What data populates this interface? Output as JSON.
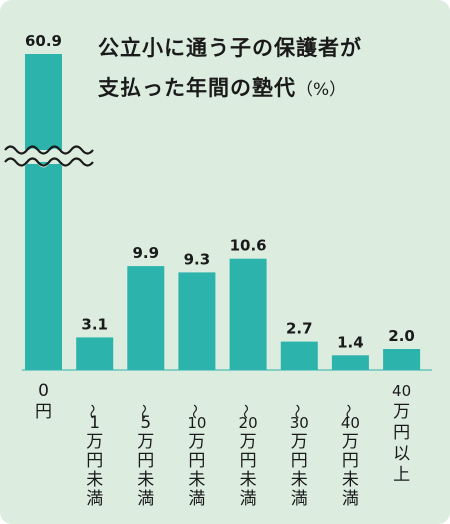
{
  "chart_data": {
    "type": "bar",
    "title_lines": [
      "公立小に通う子の保護者が",
      "支払った年間の塾代"
    ],
    "unit": "（%）",
    "categories": [
      "0円",
      "～1万円未満",
      "～5万円未満",
      "～10万円未満",
      "～20万円未満",
      "～30万円未満",
      "～40万円未満",
      "40万円以上"
    ],
    "category_label_chars": [
      [
        "0",
        "円"
      ],
      [
        "～",
        "1",
        "万",
        "円",
        "未",
        "満"
      ],
      [
        "～",
        "5",
        "万",
        "円",
        "未",
        "満"
      ],
      [
        "～",
        "10",
        "万",
        "円",
        "未",
        "満"
      ],
      [
        "～",
        "20",
        "万",
        "円",
        "未",
        "満"
      ],
      [
        "～",
        "30",
        "万",
        "円",
        "未",
        "満"
      ],
      [
        "～",
        "40",
        "万",
        "円",
        "未",
        "満"
      ],
      [
        "40",
        "万",
        "円",
        "以",
        "上"
      ]
    ],
    "values": [
      60.9,
      3.1,
      9.9,
      9.3,
      10.6,
      2.7,
      1.4,
      2.0
    ],
    "value_labels": [
      "60.9",
      "3.1",
      "9.9",
      "9.3",
      "10.6",
      "2.7",
      "1.4",
      "2.0"
    ],
    "axis_break": true,
    "bar_color": "#2bb3ac",
    "background_color": "#dcecdf",
    "xlabel": "",
    "ylabel": ""
  }
}
